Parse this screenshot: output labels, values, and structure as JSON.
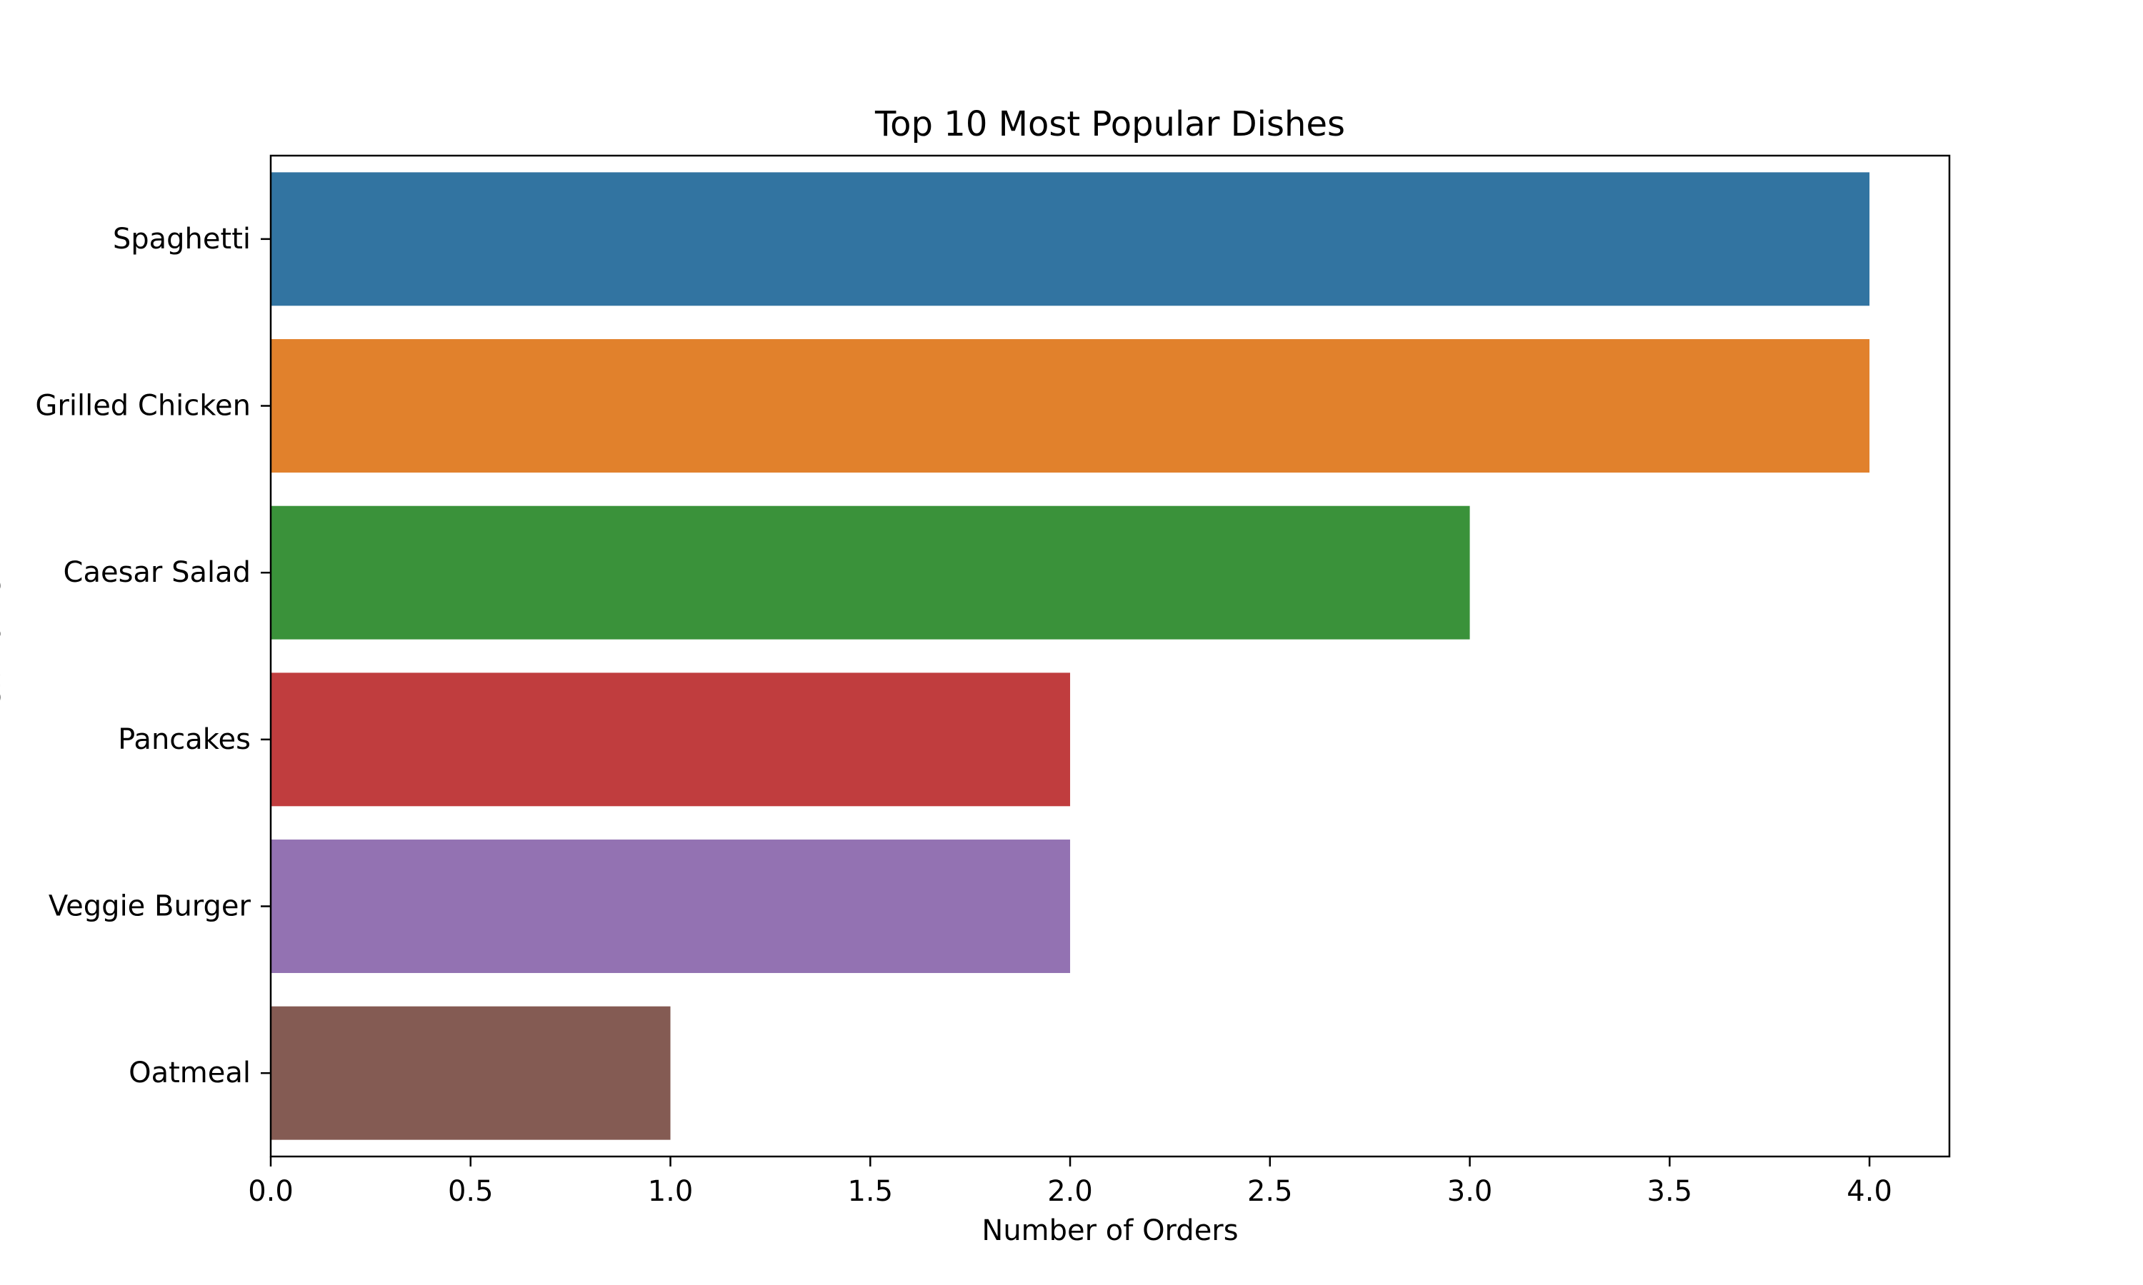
{
  "chart_data": {
    "type": "bar",
    "orientation": "horizontal",
    "title": "Top 10 Most Popular Dishes",
    "xlabel": "Number of Orders",
    "ylabel": "Dish Name",
    "categories": [
      "Spaghetti",
      "Grilled Chicken",
      "Caesar Salad",
      "Pancakes",
      "Veggie Burger",
      "Oatmeal"
    ],
    "values": [
      4,
      4,
      3,
      2,
      2,
      1
    ],
    "colors": [
      "#3274a1",
      "#e1812c",
      "#3a923a",
      "#c03d3e",
      "#9372b2",
      "#845b53"
    ],
    "xlim": [
      0,
      4.2
    ],
    "xticks": [
      0,
      0.5,
      1.0,
      1.5,
      2.0,
      2.5,
      3.0,
      3.5,
      4.0
    ],
    "xtick_labels": [
      "0.0",
      "0.5",
      "1.0",
      "1.5",
      "2.0",
      "2.5",
      "3.0",
      "3.5",
      "4.0"
    ],
    "grid": false,
    "legend": "none"
  }
}
